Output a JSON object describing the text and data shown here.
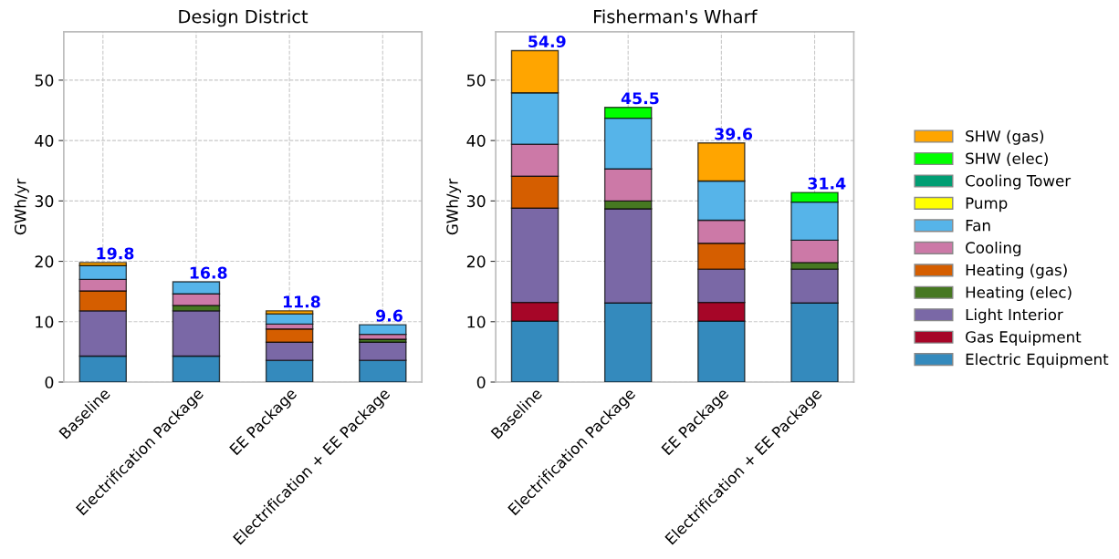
{
  "chart_data": [
    {
      "type": "bar",
      "stacked": true,
      "title": "Design District",
      "ylabel": "GWh/yr",
      "categories": [
        "Baseline",
        "Electrification Package",
        "EE Package",
        "Electrification + EE Package"
      ],
      "series": [
        {
          "color": "#348abd",
          "values": [
            4.3,
            4.3,
            3.6,
            3.6
          ]
        },
        {
          "values": [
            0,
            0,
            0,
            0
          ]
        },
        {
          "color": "#7a68a6",
          "values": [
            7.5,
            7.5,
            3.0,
            3.0
          ]
        },
        {
          "color": "#467821",
          "values": [
            0,
            0.9,
            0,
            0.5
          ]
        },
        {
          "color": "#d55e00",
          "values": [
            3.3,
            0,
            2.2,
            0
          ]
        },
        {
          "color": "#cc79a7",
          "values": [
            1.9,
            1.9,
            0.8,
            0.8
          ]
        },
        {
          "color": "#56b4e9",
          "values": [
            2.3,
            2.0,
            1.7,
            1.6
          ]
        },
        {
          "values": [
            0,
            0,
            0,
            0
          ]
        },
        {
          "values": [
            0,
            0,
            0,
            0
          ]
        },
        {
          "values": [
            0,
            0,
            0,
            0
          ]
        },
        {
          "color": "#ffa500",
          "values": [
            0.5,
            0,
            0.5,
            0
          ]
        }
      ],
      "totals": [
        "19.8",
        "16.8",
        "11.8",
        "9.6"
      ],
      "ylim": [
        0,
        58
      ],
      "yticks": [
        0,
        10,
        20,
        30,
        40,
        50
      ],
      "grid": true
    },
    {
      "type": "bar",
      "stacked": true,
      "title": "Fisherman's Wharf",
      "ylabel": "GWh/yr",
      "categories": [
        "Baseline",
        "Electrification Package",
        "EE Package",
        "Electrification + EE Package"
      ],
      "series": [
        {
          "name": "Electric Equipment",
          "color": "#348abd",
          "values": [
            10.1,
            13.1,
            10.1,
            13.1
          ]
        },
        {
          "name": "Gas Equipment",
          "color": "#a60628",
          "values": [
            3.1,
            0,
            3.1,
            0
          ]
        },
        {
          "name": "Light Interior",
          "color": "#7a68a6",
          "values": [
            15.6,
            15.6,
            5.5,
            5.6
          ]
        },
        {
          "name": "Heating (elec)",
          "color": "#467821",
          "values": [
            0,
            1.3,
            0,
            1.1
          ]
        },
        {
          "name": "Heating (gas)",
          "color": "#d55e00",
          "values": [
            5.3,
            0,
            4.3,
            0
          ]
        },
        {
          "name": "Cooling",
          "color": "#cc79a7",
          "values": [
            5.3,
            5.3,
            3.8,
            3.7
          ]
        },
        {
          "name": "Fan",
          "color": "#56b4e9",
          "values": [
            8.5,
            8.4,
            6.5,
            6.3
          ]
        },
        {
          "name": "Pump",
          "color": "#ffff00",
          "values": [
            0,
            0,
            0,
            0
          ]
        },
        {
          "name": "Cooling Tower",
          "color": "#009e73",
          "values": [
            0,
            0,
            0,
            0
          ]
        },
        {
          "name": "SHW (elec)",
          "color": "#00ff00",
          "values": [
            0,
            1.8,
            0,
            1.6
          ]
        },
        {
          "name": "SHW (gas)",
          "color": "#ffa500",
          "values": [
            7.0,
            0,
            6.3,
            0
          ]
        }
      ],
      "totals": [
        "54.9",
        "45.5",
        "39.6",
        "31.4"
      ],
      "ylim": [
        0,
        58
      ],
      "yticks": [
        0,
        10,
        20,
        30,
        40,
        50
      ],
      "grid": true,
      "legend": "right"
    }
  ]
}
